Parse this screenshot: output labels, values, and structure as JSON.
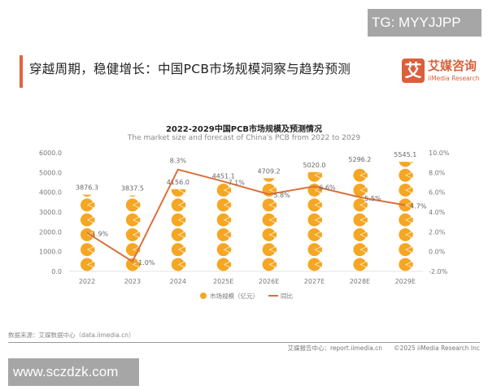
{
  "watermark_top": "TG: MYYJJPP",
  "watermark_bottom": "www.sczdzk.com",
  "heading": "穿越周期，稳健增长：中国PCB市场规模洞察与趋势预测",
  "logo": {
    "cn": "艾媒咨询",
    "en": "iiMedia Research",
    "mark": "艾"
  },
  "source": "数据来源：艾媒数据中心（data.iimedia.cn）",
  "footer": {
    "report": "艾媒报告中心：report.iimedia.cn",
    "copyright": "©2025  iiMedia Research  Inc"
  },
  "colors": {
    "accent": "#e0643c",
    "bar": "#f5a623",
    "line": "#d9703a"
  },
  "chart_data": {
    "type": "bar+line",
    "title": "2022-2029中国PCB市场规模及预测情况",
    "subtitle": "The market size and forecast of China's PCB from 2022 to 2029",
    "categories": [
      "2022",
      "2023",
      "2024",
      "2025E",
      "2026E",
      "2027E",
      "2028E",
      "2029E"
    ],
    "series": [
      {
        "name": "市场规模（亿元）",
        "type": "pictorial-bar",
        "axis": "left",
        "values": [
          3876.3,
          3837.5,
          4156.0,
          4451.1,
          4709.2,
          5020.0,
          5296.2,
          5545.1
        ],
        "labels": [
          "3876.3",
          "3837.5",
          "4156.0",
          "4451.1",
          "4709.2",
          "5020.0",
          "5296.2",
          "5545.1"
        ]
      },
      {
        "name": "同比",
        "type": "line",
        "axis": "right",
        "values": [
          1.9,
          -1.0,
          8.3,
          7.1,
          5.8,
          6.6,
          5.5,
          4.7
        ],
        "labels": [
          "1.9%",
          "-1.0%",
          "8.3%",
          "7.1%",
          "5.8%",
          "6.6%",
          "5.5%",
          "4.7%"
        ]
      }
    ],
    "y_left": {
      "range": [
        0,
        6000
      ],
      "ticks": [
        "0.0",
        "1000.0",
        "2000.0",
        "3000.0",
        "4000.0",
        "5000.0",
        "6000.0"
      ]
    },
    "y_right": {
      "range": [
        -2,
        10
      ],
      "ticks": [
        "-2.0%",
        "0.0%",
        "2.0%",
        "4.0%",
        "6.0%",
        "8.0%",
        "10.0%"
      ]
    },
    "grid": false,
    "legend": "bottom"
  }
}
